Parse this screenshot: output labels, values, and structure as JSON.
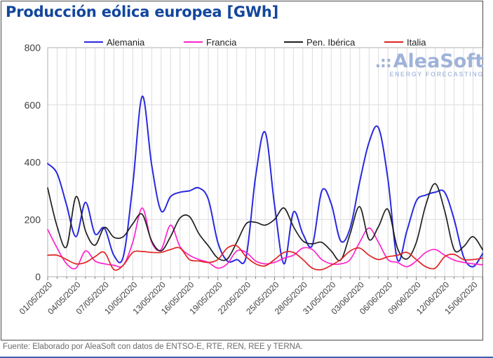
{
  "page": {
    "footer": "Fuente: Elaborado por AleaSoft con datos de ENTSO-E, RTE, REN, REE y TERNA.",
    "watermark": {
      "dots": ".::",
      "name": "AleaSoft",
      "tagline": "ENERGY FORECASTING"
    }
  },
  "colors": {
    "title": "#13469c",
    "axis_text": "#3f3f3f",
    "grid": "#dcdcdc",
    "axis_line": "#808080",
    "plot_border": "#b0b0b0",
    "frame_border": "#4a4a4a",
    "footer_text": "#6b6b6b",
    "watermark": "#9fb2d9",
    "bottom_rule": "#3f5fb0"
  },
  "chart_data": {
    "type": "line",
    "title": "Producción eólica europea [GWh]",
    "xlabel": "",
    "ylabel": "",
    "ylim": [
      0,
      800
    ],
    "y_ticks": [
      0,
      200,
      400,
      600,
      800
    ],
    "x_tick_labels": [
      "01/05/2020",
      "04/05/2020",
      "07/05/2020",
      "10/05/2020",
      "13/05/2020",
      "16/05/2020",
      "19/05/2020",
      "22/05/2020",
      "25/05/2020",
      "28/05/2020",
      "31/05/2020",
      "03/06/2020",
      "06/06/2020",
      "09/06/2020",
      "12/06/2020",
      "15/06/2020"
    ],
    "x_tick_step_days": 3,
    "x_days_total": 47,
    "x_label_rotation_deg": 45,
    "grid": "vertical line per day, horizontal lines every 200 GWh",
    "legend_position": "top",
    "series": [
      {
        "name": "Alemania",
        "color": "#2929e0",
        "values": [
          395,
          360,
          250,
          140,
          260,
          150,
          170,
          75,
          70,
          320,
          630,
          390,
          230,
          280,
          295,
          300,
          310,
          270,
          120,
          55,
          60,
          70,
          350,
          505,
          250,
          45,
          225,
          150,
          110,
          300,
          255,
          125,
          170,
          330,
          470,
          520,
          340,
          60,
          160,
          265,
          285,
          295,
          295,
          200,
          70,
          35,
          80
        ]
      },
      {
        "name": "Francia",
        "color": "#ff22cc",
        "values": [
          165,
          100,
          45,
          30,
          90,
          55,
          45,
          40,
          40,
          120,
          240,
          120,
          95,
          180,
          105,
          75,
          60,
          50,
          30,
          45,
          90,
          85,
          55,
          45,
          50,
          65,
          75,
          100,
          95,
          60,
          45,
          45,
          60,
          120,
          170,
          120,
          60,
          50,
          35,
          55,
          85,
          95,
          75,
          58,
          50,
          45,
          42
        ]
      },
      {
        "name": "Pen. Ibérica",
        "color": "#1f1f1f",
        "values": [
          310,
          175,
          105,
          280,
          160,
          110,
          172,
          138,
          140,
          185,
          218,
          125,
          90,
          140,
          205,
          210,
          150,
          108,
          65,
          62,
          120,
          185,
          190,
          180,
          200,
          240,
          175,
          125,
          115,
          120,
          90,
          58,
          150,
          245,
          130,
          175,
          235,
          100,
          62,
          120,
          250,
          325,
          230,
          95,
          105,
          140,
          95
        ]
      },
      {
        "name": "Italia",
        "color": "#e02424",
        "values": [
          75,
          75,
          60,
          45,
          50,
          70,
          85,
          25,
          40,
          85,
          88,
          85,
          85,
          95,
          100,
          60,
          55,
          50,
          60,
          100,
          108,
          70,
          45,
          38,
          60,
          85,
          85,
          60,
          30,
          25,
          40,
          60,
          90,
          100,
          75,
          60,
          70,
          75,
          85,
          60,
          35,
          30,
          70,
          78,
          60,
          60,
          65
        ]
      }
    ]
  }
}
